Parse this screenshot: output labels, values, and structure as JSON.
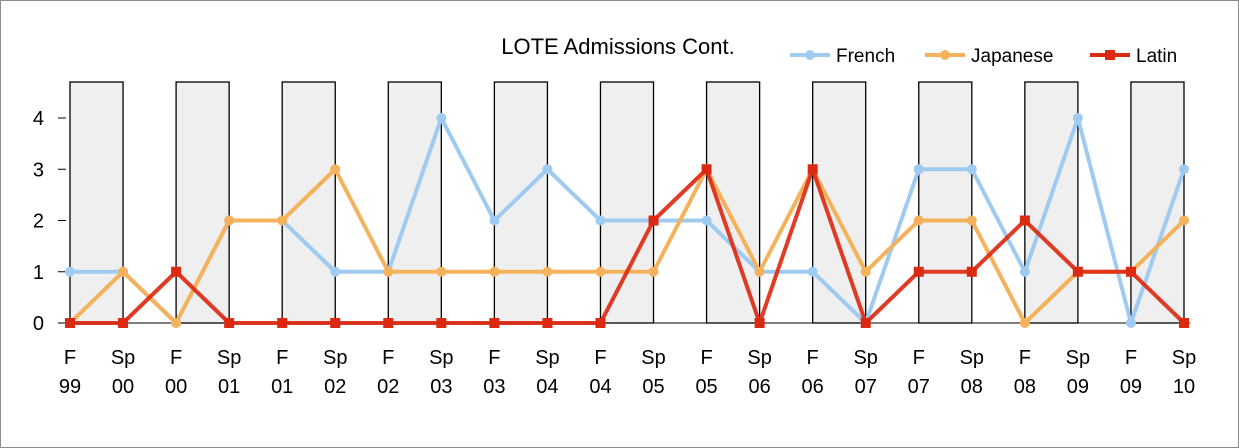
{
  "chart_data": {
    "type": "line",
    "title": "LOTE Admissions Cont.",
    "xlabel": "",
    "ylabel": "",
    "ylim": [
      0,
      4
    ],
    "yticks": [
      0,
      1,
      2,
      3,
      4
    ],
    "legend_position": "top-right",
    "shaded_bands": "grey bars over each fall-to-spring semester pair",
    "categories": [
      [
        "F",
        "99"
      ],
      [
        "Sp",
        "00"
      ],
      [
        "F",
        "00"
      ],
      [
        "Sp",
        "01"
      ],
      [
        "F",
        "01"
      ],
      [
        "Sp",
        "02"
      ],
      [
        "F",
        "02"
      ],
      [
        "Sp",
        "03"
      ],
      [
        "F",
        "03"
      ],
      [
        "Sp",
        "04"
      ],
      [
        "F",
        "04"
      ],
      [
        "Sp",
        "05"
      ],
      [
        "F",
        "05"
      ],
      [
        "Sp",
        "06"
      ],
      [
        "F",
        "06"
      ],
      [
        "Sp",
        "07"
      ],
      [
        "F",
        "07"
      ],
      [
        "Sp",
        "08"
      ],
      [
        "F",
        "08"
      ],
      [
        "Sp",
        "09"
      ],
      [
        "F",
        "09"
      ],
      [
        "Sp",
        "10"
      ]
    ],
    "series": [
      {
        "name": "French",
        "color": "#9fcbf1",
        "marker": "circle",
        "values": [
          1,
          1,
          0,
          2,
          2,
          1,
          1,
          4,
          2,
          3,
          2,
          2,
          2,
          1,
          1,
          0,
          3,
          3,
          1,
          4,
          0,
          3
        ]
      },
      {
        "name": "Japanese",
        "color": "#f5b25c",
        "marker": "circle",
        "values": [
          0,
          1,
          0,
          2,
          2,
          3,
          1,
          1,
          1,
          1,
          1,
          1,
          3,
          1,
          3,
          1,
          2,
          2,
          0,
          1,
          1,
          2
        ]
      },
      {
        "name": "Latin",
        "color": "#dc2a12",
        "marker": "square",
        "values": [
          0,
          0,
          1,
          0,
          0,
          0,
          0,
          0,
          0,
          0,
          0,
          2,
          3,
          0,
          3,
          0,
          1,
          1,
          2,
          1,
          1,
          0
        ]
      }
    ]
  }
}
